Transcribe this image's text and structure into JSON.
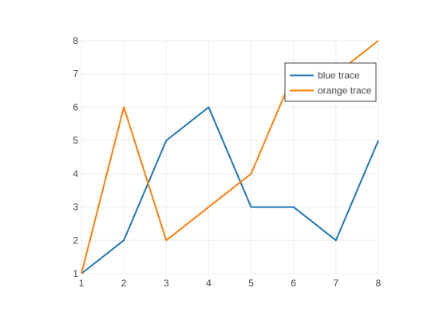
{
  "chart_data": {
    "type": "line",
    "title": "",
    "xlabel": "",
    "ylabel": "",
    "x": [
      1,
      2,
      3,
      4,
      5,
      6,
      7,
      8
    ],
    "xlim": [
      1,
      8
    ],
    "ylim": [
      1,
      8
    ],
    "xticks": [
      "1",
      "2",
      "3",
      "4",
      "5",
      "6",
      "7",
      "8"
    ],
    "yticks": [
      "1",
      "2",
      "3",
      "4",
      "5",
      "6",
      "7",
      "8"
    ],
    "grid": true,
    "legend_position": "top-right",
    "series": [
      {
        "name": "blue trace",
        "color": "#1f77b4",
        "values": [
          1,
          2,
          5,
          6,
          3,
          3,
          2,
          5
        ]
      },
      {
        "name": "orange trace",
        "color": "#ff7f0e",
        "values": [
          1,
          6,
          2,
          3,
          4,
          7,
          7,
          8
        ]
      }
    ]
  }
}
